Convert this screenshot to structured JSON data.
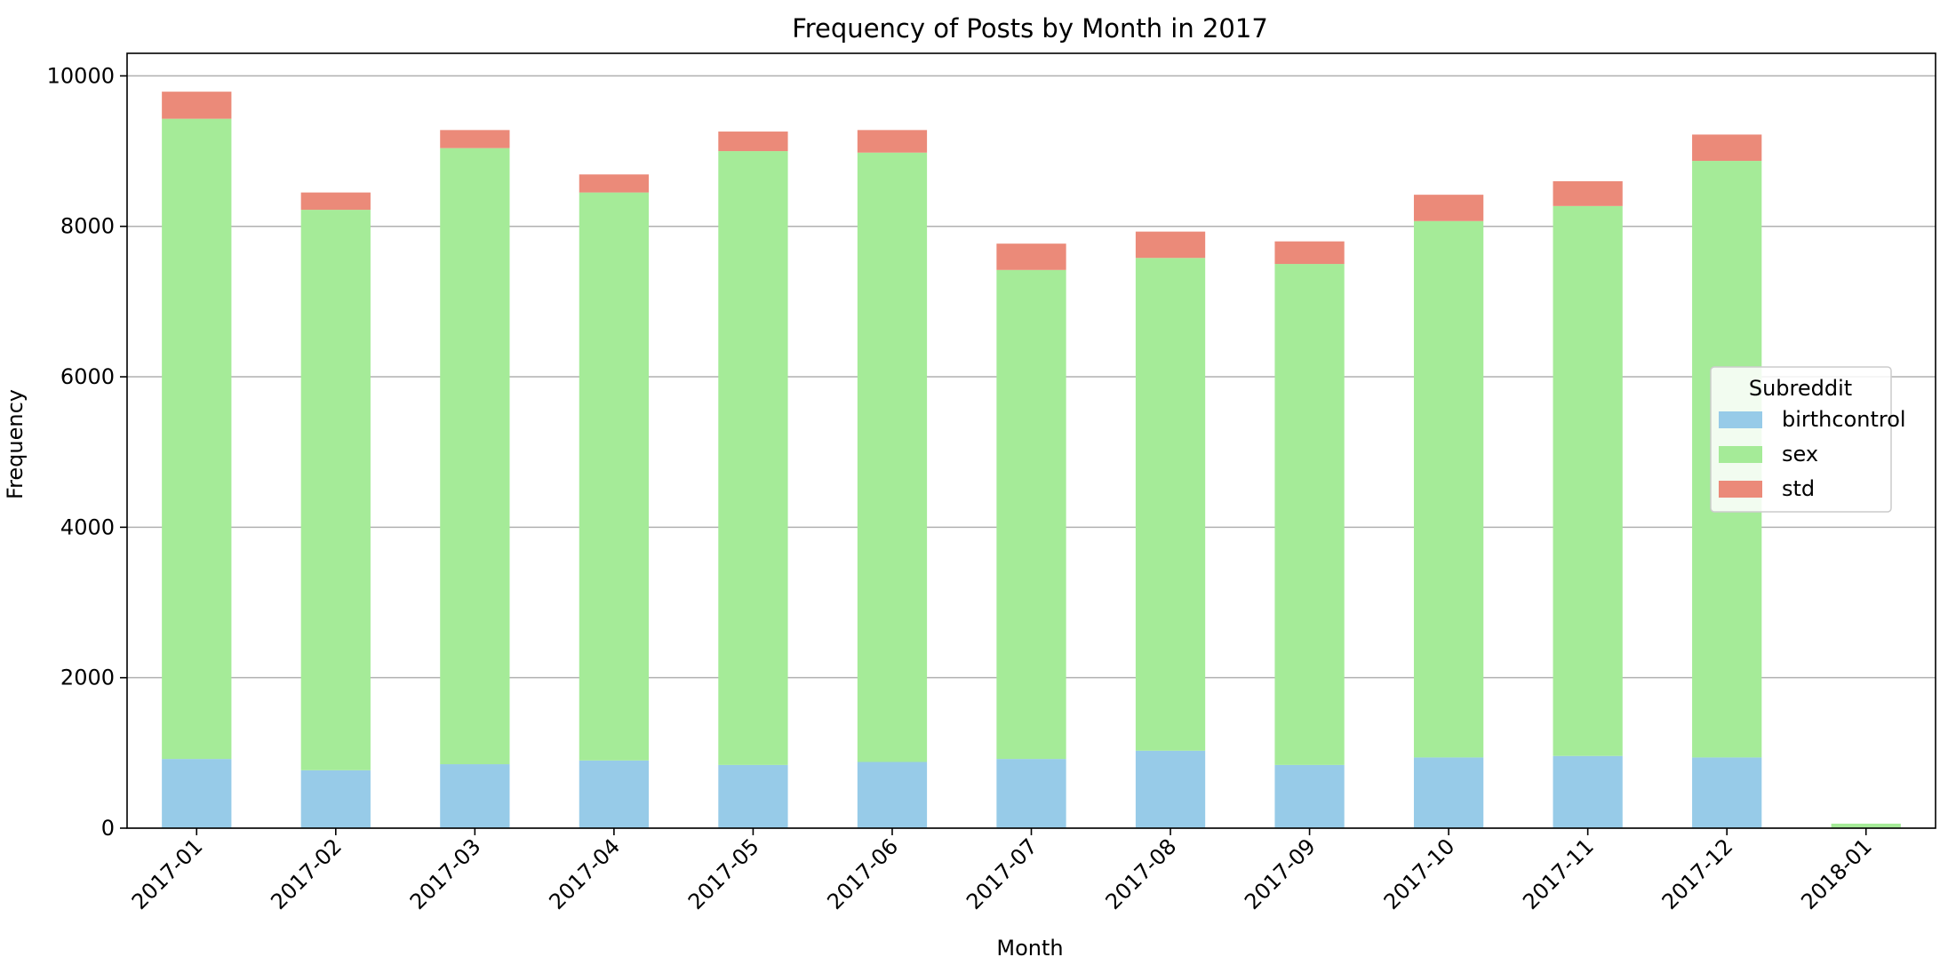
{
  "chart_data": {
    "type": "bar",
    "stacked": true,
    "title": "Frequency of Posts by Month in 2017",
    "xlabel": "Month",
    "ylabel": "Frequency",
    "categories": [
      "2017-01",
      "2017-02",
      "2017-03",
      "2017-04",
      "2017-05",
      "2017-06",
      "2017-07",
      "2017-08",
      "2017-09",
      "2017-10",
      "2017-11",
      "2017-12",
      "2018-01"
    ],
    "series": [
      {
        "name": "birthcontrol",
        "color": "#97cbe8",
        "values": [
          920,
          770,
          850,
          900,
          840,
          880,
          920,
          1030,
          840,
          940,
          960,
          940,
          0
        ]
      },
      {
        "name": "sex",
        "color": "#a5eb98",
        "values": [
          8510,
          7450,
          8190,
          7550,
          8160,
          8100,
          6500,
          6550,
          6660,
          7130,
          7310,
          7930,
          60
        ]
      },
      {
        "name": "std",
        "color": "#eb8a79",
        "values": [
          360,
          230,
          240,
          240,
          260,
          300,
          350,
          350,
          300,
          350,
          330,
          350,
          0
        ]
      }
    ],
    "ylim": [
      0,
      10300
    ],
    "yticks": [
      0,
      2000,
      4000,
      6000,
      8000,
      10000
    ],
    "grid": "y",
    "legend": {
      "title": "Subreddit",
      "position": "center-right"
    }
  }
}
